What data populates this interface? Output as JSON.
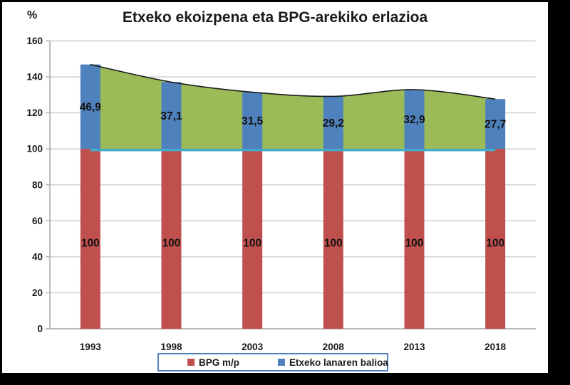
{
  "page": {
    "background": "#ffffff",
    "frame_color": "#000000"
  },
  "header": {
    "title": "Etxeko ekoizpena eta BPG-arekiko erlazioa",
    "y_axis_unit": "%"
  },
  "chart_data": {
    "type": "bar",
    "subtype": "stacked bars with green area overlay (baseline 100 to total, smooth black top line) and cyan reference line at 100",
    "title": "Etxeko ekoizpena eta BPG-arekiko erlazioa",
    "xlabel": "",
    "ylabel": "%",
    "ylim": [
      0,
      160
    ],
    "ytick_step": 20,
    "yticks": [
      "0",
      "20",
      "40",
      "60",
      "80",
      "100",
      "120",
      "140",
      "160"
    ],
    "grid": "horizontal light gray gridlines",
    "legend_position": "bottom-center",
    "categories": [
      "1993",
      "1998",
      "2003",
      "2008",
      "2013",
      "2018"
    ],
    "series": [
      {
        "name": "BPG m/p",
        "type": "bar",
        "color": "#C0504D",
        "values": [
          100,
          100,
          100,
          100,
          100,
          100
        ],
        "data_labels": [
          "100",
          "100",
          "100",
          "100",
          "100",
          "100"
        ]
      },
      {
        "name": "Etxeko lanaren balioa",
        "type": "bar-stacked-on-previous",
        "color": "#4F81BD",
        "values": [
          46.9,
          37.1,
          31.5,
          29.2,
          32.9,
          27.7
        ],
        "data_labels": [
          "46,9",
          "37,1",
          "31,5",
          "29,2",
          "32,9",
          "27,7"
        ]
      }
    ],
    "area_overlay": {
      "description": "green filled band between value 100 and stacked totals, smoothed top edge outlined in black",
      "color": "#9BBB59",
      "outline_color": "#1a1a1a",
      "baseline": 100,
      "totals": [
        146.9,
        137.1,
        131.5,
        129.2,
        132.9,
        127.7
      ]
    },
    "reference_line": {
      "value": 100,
      "color": "#41ACC9"
    }
  },
  "legend": {
    "border_color": "#4F81BD",
    "items": [
      {
        "label": "BPG m/p",
        "color": "#C0504D"
      },
      {
        "label": "Etxeko lanaren balioa",
        "color": "#4F81BD"
      }
    ]
  },
  "style": {
    "gridline_color": "#C9C9C9",
    "axis_color": "#A6A6A6",
    "label_color": "#1a1a1a"
  }
}
